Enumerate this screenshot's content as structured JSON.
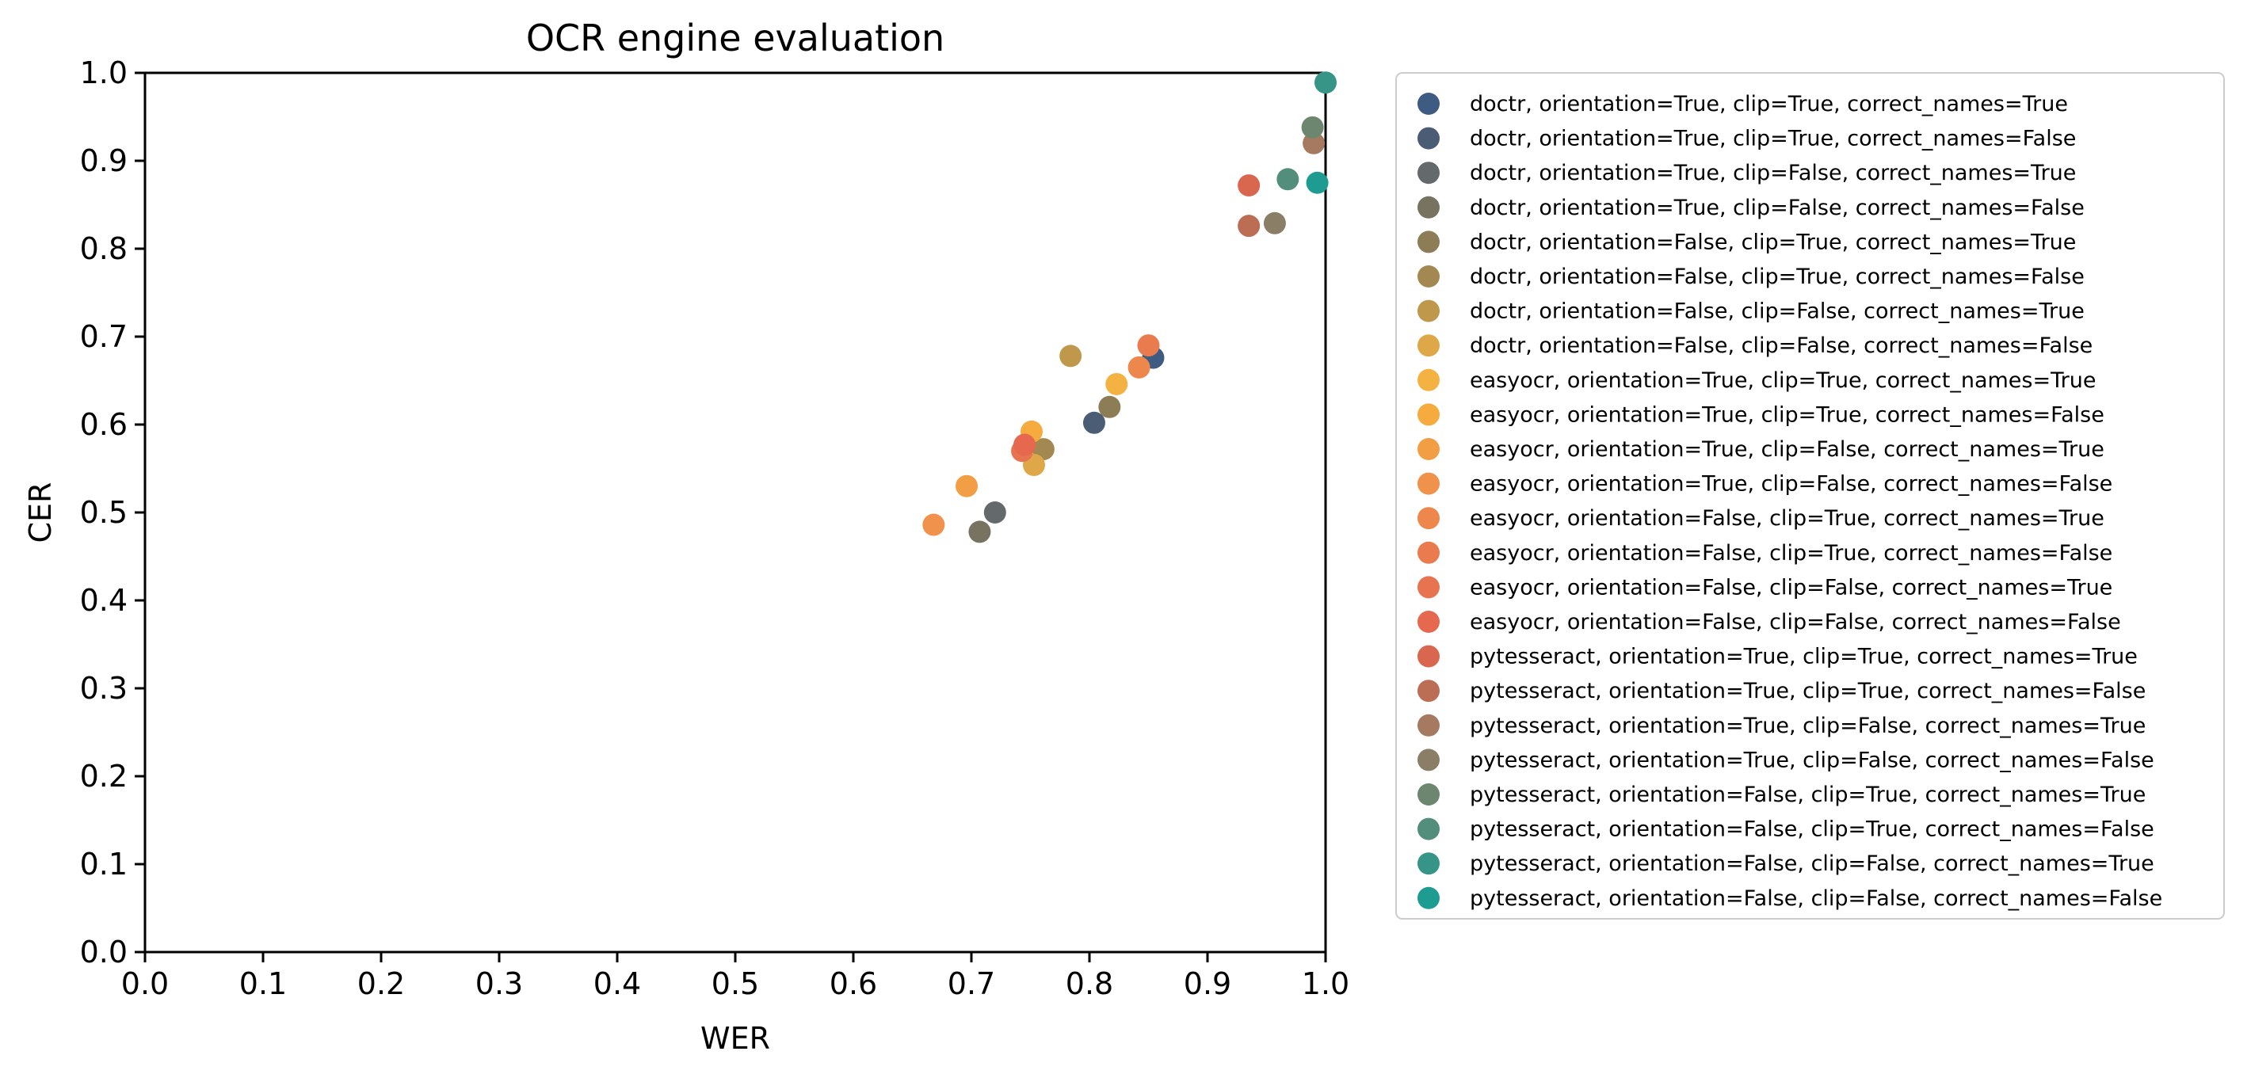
{
  "chart_data": {
    "type": "scatter",
    "title": "OCR engine evaluation",
    "xlabel": "WER",
    "ylabel": "CER",
    "xlim": [
      0.0,
      1.0
    ],
    "ylim": [
      0.0,
      1.0
    ],
    "xticks": [
      "0.0",
      "0.1",
      "0.2",
      "0.3",
      "0.4",
      "0.5",
      "0.6",
      "0.7",
      "0.8",
      "0.9",
      "1.0"
    ],
    "yticks": [
      "0.0",
      "0.1",
      "0.2",
      "0.3",
      "0.4",
      "0.5",
      "0.6",
      "0.7",
      "0.8",
      "0.9",
      "1.0"
    ],
    "grid": false,
    "legend_position": "outside-right",
    "series": [
      {
        "name": "doctr, orientation=True, clip=True, correct_names=True",
        "color": "#3e5c82",
        "x": 0.854,
        "y": 0.676
      },
      {
        "name": "doctr, orientation=True, clip=True, correct_names=False",
        "color": "#4b5d75",
        "x": 0.804,
        "y": 0.602
      },
      {
        "name": "doctr, orientation=True, clip=False, correct_names=True",
        "color": "#646a6c",
        "x": 0.72,
        "y": 0.5
      },
      {
        "name": "doctr, orientation=True, clip=False, correct_names=False",
        "color": "#787360",
        "x": 0.707,
        "y": 0.478
      },
      {
        "name": "doctr, orientation=False, clip=True, correct_names=True",
        "color": "#8c7d57",
        "x": 0.817,
        "y": 0.62
      },
      {
        "name": "doctr, orientation=False, clip=True, correct_names=False",
        "color": "#a48852",
        "x": 0.761,
        "y": 0.572
      },
      {
        "name": "doctr, orientation=False, clip=False, correct_names=True",
        "color": "#bf984c",
        "x": 0.784,
        "y": 0.678
      },
      {
        "name": "doctr, orientation=False, clip=False, correct_names=False",
        "color": "#dea848",
        "x": 0.753,
        "y": 0.554
      },
      {
        "name": "easyocr, orientation=True, clip=True, correct_names=True",
        "color": "#f3b241",
        "x": 0.823,
        "y": 0.646
      },
      {
        "name": "easyocr, orientation=True, clip=True, correct_names=False",
        "color": "#f5ab3e",
        "x": 0.751,
        "y": 0.592
      },
      {
        "name": "easyocr, orientation=True, clip=False, correct_names=True",
        "color": "#f29e44",
        "x": 0.696,
        "y": 0.53
      },
      {
        "name": "easyocr, orientation=True, clip=False, correct_names=False",
        "color": "#f0924b",
        "x": 0.668,
        "y": 0.486
      },
      {
        "name": "easyocr, orientation=False, clip=True, correct_names=True",
        "color": "#ed874c",
        "x": 0.842,
        "y": 0.665
      },
      {
        "name": "easyocr, orientation=False, clip=True, correct_names=False",
        "color": "#e97b4f",
        "x": 0.85,
        "y": 0.69
      },
      {
        "name": "easyocr, orientation=False, clip=False, correct_names=True",
        "color": "#e87350",
        "x": 0.743,
        "y": 0.57
      },
      {
        "name": "easyocr, orientation=False, clip=False, correct_names=False",
        "color": "#e5684f",
        "x": 0.745,
        "y": 0.577
      },
      {
        "name": "pytesseract, orientation=True, clip=True, correct_names=True",
        "color": "#d9674f",
        "x": 0.935,
        "y": 0.872
      },
      {
        "name": "pytesseract, orientation=True, clip=True, correct_names=False",
        "color": "#bb6e54",
        "x": 0.935,
        "y": 0.826
      },
      {
        "name": "pytesseract, orientation=True, clip=False, correct_names=True",
        "color": "#a67a60",
        "x": 0.99,
        "y": 0.92
      },
      {
        "name": "pytesseract, orientation=True, clip=False, correct_names=False",
        "color": "#8a7e66",
        "x": 0.957,
        "y": 0.829
      },
      {
        "name": "pytesseract, orientation=False, clip=True, correct_names=True",
        "color": "#6d8670",
        "x": 0.989,
        "y": 0.938
      },
      {
        "name": "pytesseract, orientation=False, clip=True, correct_names=False",
        "color": "#528e7b",
        "x": 0.968,
        "y": 0.879
      },
      {
        "name": "pytesseract, orientation=False, clip=False, correct_names=True",
        "color": "#379588",
        "x": 1.0,
        "y": 0.989
      },
      {
        "name": "pytesseract, orientation=False, clip=False, correct_names=False",
        "color": "#1f9c91",
        "x": 0.993,
        "y": 0.875
      }
    ]
  }
}
